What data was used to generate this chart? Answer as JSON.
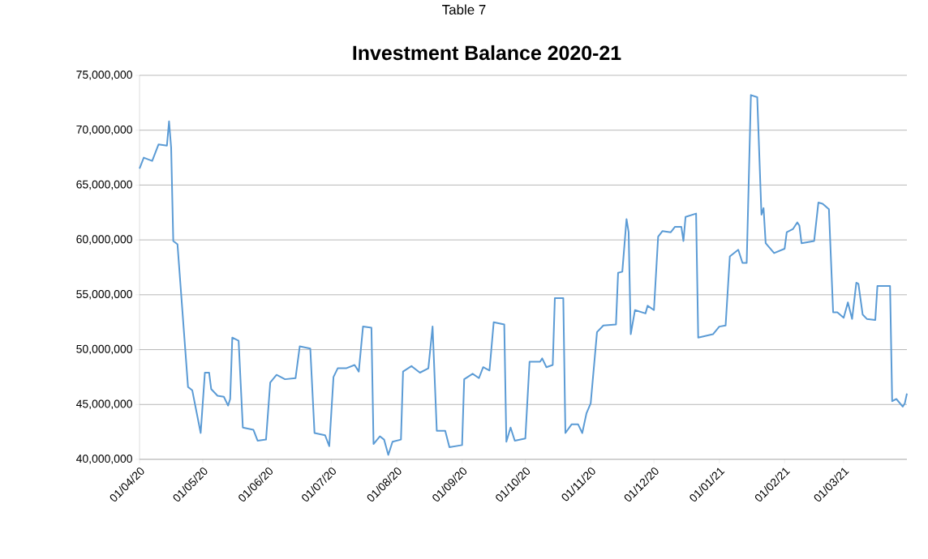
{
  "chart_data": {
    "type": "line",
    "title": "Investment Balance 2020-21",
    "annotations": [
      "Table 7"
    ],
    "x": [
      "2020-04-01",
      "2020-04-03",
      "2020-04-07",
      "2020-04-10",
      "2020-04-14",
      "2020-04-15",
      "2020-04-16",
      "2020-04-17",
      "2020-04-19",
      "2020-04-24",
      "2020-04-26",
      "2020-04-30",
      "2020-05-02",
      "2020-05-04",
      "2020-05-05",
      "2020-05-08",
      "2020-05-11",
      "2020-05-13",
      "2020-05-14",
      "2020-05-15",
      "2020-05-18",
      "2020-05-20",
      "2020-05-25",
      "2020-05-27",
      "2020-05-31",
      "2020-06-02",
      "2020-06-05",
      "2020-06-09",
      "2020-06-14",
      "2020-06-16",
      "2020-06-21",
      "2020-06-23",
      "2020-06-28",
      "2020-06-30",
      "2020-07-02",
      "2020-07-04",
      "2020-07-08",
      "2020-07-12",
      "2020-07-14",
      "2020-07-16",
      "2020-07-20",
      "2020-07-21",
      "2020-07-24",
      "2020-07-26",
      "2020-07-28",
      "2020-07-30",
      "2020-08-03",
      "2020-08-04",
      "2020-08-08",
      "2020-08-12",
      "2020-08-16",
      "2020-08-18",
      "2020-08-20",
      "2020-08-24",
      "2020-08-26",
      "2020-09-01",
      "2020-09-02",
      "2020-09-06",
      "2020-09-09",
      "2020-09-11",
      "2020-09-14",
      "2020-09-16",
      "2020-09-21",
      "2020-09-22",
      "2020-09-24",
      "2020-09-26",
      "2020-10-01",
      "2020-10-03",
      "2020-10-08",
      "2020-10-09",
      "2020-10-11",
      "2020-10-14",
      "2020-10-15",
      "2020-10-19",
      "2020-10-20",
      "2020-10-23",
      "2020-10-26",
      "2020-10-28",
      "2020-10-30",
      "2020-11-01",
      "2020-11-04",
      "2020-11-07",
      "2020-11-13",
      "2020-11-14",
      "2020-11-16",
      "2020-11-18",
      "2020-11-19",
      "2020-11-20",
      "2020-11-22",
      "2020-11-27",
      "2020-11-28",
      "2020-12-01",
      "2020-12-03",
      "2020-12-05",
      "2020-12-09",
      "2020-12-11",
      "2020-12-14",
      "2020-12-15",
      "2020-12-16",
      "2020-12-21",
      "2020-12-22",
      "2020-12-29",
      "2021-01-01",
      "2021-01-04",
      "2021-01-06",
      "2021-01-10",
      "2021-01-12",
      "2021-01-14",
      "2021-01-16",
      "2021-01-19",
      "2021-01-21",
      "2021-01-22",
      "2021-01-23",
      "2021-01-27",
      "2021-02-01",
      "2021-02-02",
      "2021-02-05",
      "2021-02-07",
      "2021-02-08",
      "2021-02-09",
      "2021-02-15",
      "2021-02-17",
      "2021-02-19",
      "2021-02-22",
      "2021-02-24",
      "2021-02-26",
      "2021-03-01",
      "2021-03-03",
      "2021-03-05",
      "2021-03-07",
      "2021-03-08",
      "2021-03-10",
      "2021-03-12",
      "2021-03-16",
      "2021-03-17",
      "2021-03-23",
      "2021-03-24",
      "2021-03-26",
      "2021-03-29",
      "2021-03-30",
      "2021-03-31"
    ],
    "series": [
      {
        "color": "#5b9bd5",
        "values": [
          66500000,
          67500000,
          67200000,
          68700000,
          68600000,
          70800000,
          68400000,
          59900000,
          59600000,
          46600000,
          46300000,
          42400000,
          47900000,
          47900000,
          46400000,
          45800000,
          45700000,
          44900000,
          45500000,
          51100000,
          50800000,
          42900000,
          42700000,
          41700000,
          41800000,
          47000000,
          47700000,
          47300000,
          47400000,
          50300000,
          50100000,
          42400000,
          42200000,
          41200000,
          47500000,
          48300000,
          48300000,
          48600000,
          48000000,
          52100000,
          52000000,
          41400000,
          42100000,
          41800000,
          40400000,
          41600000,
          41800000,
          48000000,
          48500000,
          47900000,
          48300000,
          52100000,
          42600000,
          42600000,
          41100000,
          41300000,
          47300000,
          47800000,
          47400000,
          48400000,
          48100000,
          52500000,
          52300000,
          41600000,
          42900000,
          41700000,
          41900000,
          48900000,
          48900000,
          49200000,
          48400000,
          48600000,
          54700000,
          54700000,
          42400000,
          43200000,
          43200000,
          42400000,
          44200000,
          45100000,
          51600000,
          52200000,
          52300000,
          57000000,
          57100000,
          61900000,
          60700000,
          51400000,
          53600000,
          53300000,
          54000000,
          53600000,
          60300000,
          60800000,
          60700000,
          61200000,
          61200000,
          59900000,
          62100000,
          62400000,
          51100000,
          51400000,
          52100000,
          52200000,
          58500000,
          59100000,
          57900000,
          57900000,
          73200000,
          73000000,
          62300000,
          62900000,
          59700000,
          58800000,
          59200000,
          60700000,
          61000000,
          61600000,
          61300000,
          59700000,
          59900000,
          63400000,
          63300000,
          62800000,
          53400000,
          53400000,
          52900000,
          54300000,
          52800000,
          56100000,
          56000000,
          53200000,
          52800000,
          52700000,
          55800000,
          55800000,
          45300000,
          45500000,
          44800000,
          45100000,
          46000000
        ]
      }
    ],
    "xlim": [
      "2020-04-01",
      "2021-03-31"
    ],
    "xticks": [
      {
        "value": "2020-04-01",
        "label": "01/04/20"
      },
      {
        "value": "2020-05-01",
        "label": "01/05/20"
      },
      {
        "value": "2020-06-01",
        "label": "01/06/20"
      },
      {
        "value": "2020-07-01",
        "label": "01/07/20"
      },
      {
        "value": "2020-08-01",
        "label": "01/08/20"
      },
      {
        "value": "2020-09-01",
        "label": "01/09/20"
      },
      {
        "value": "2020-10-01",
        "label": "01/10/20"
      },
      {
        "value": "2020-11-01",
        "label": "01/11/20"
      },
      {
        "value": "2020-12-01",
        "label": "01/12/20"
      },
      {
        "value": "2021-01-01",
        "label": "01/01/21"
      },
      {
        "value": "2021-02-01",
        "label": "01/02/21"
      },
      {
        "value": "2021-03-01",
        "label": "01/03/21"
      }
    ],
    "ylim": [
      40000000,
      75000000
    ],
    "yticks": [
      {
        "value": 40000000,
        "label": "40,000,000"
      },
      {
        "value": 45000000,
        "label": "45,000,000"
      },
      {
        "value": 50000000,
        "label": "50,000,000"
      },
      {
        "value": 55000000,
        "label": "55,000,000"
      },
      {
        "value": 60000000,
        "label": "60,000,000"
      },
      {
        "value": 65000000,
        "label": "65,000,000"
      },
      {
        "value": 70000000,
        "label": "70,000,000"
      },
      {
        "value": 75000000,
        "label": "75,000,000"
      }
    ],
    "grid": "y",
    "legend": false,
    "marker": "none",
    "line_style": "solid"
  }
}
